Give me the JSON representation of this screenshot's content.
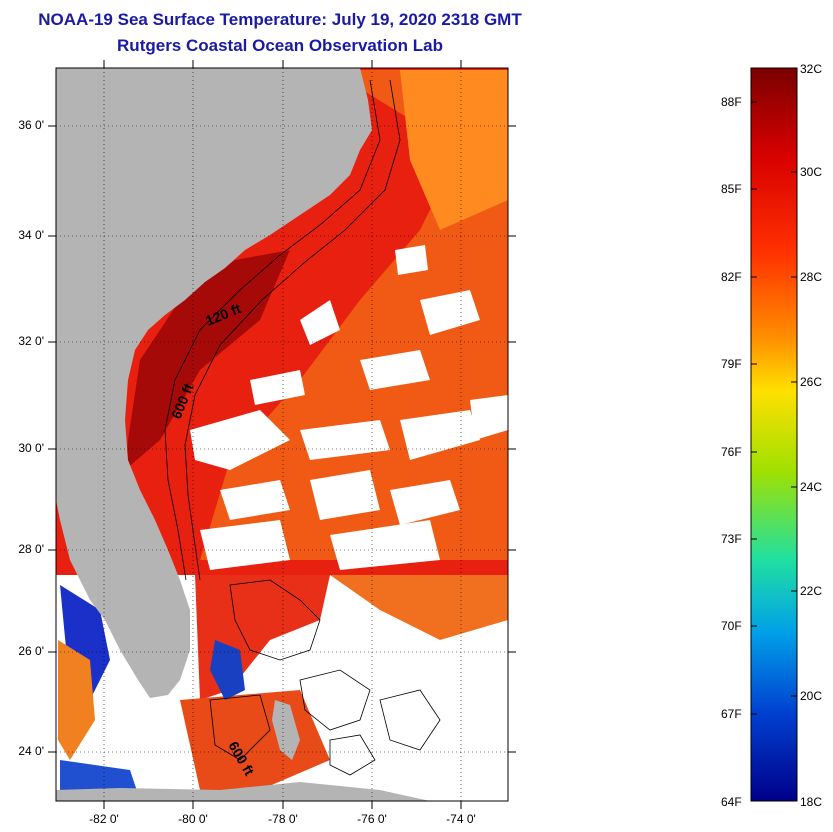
{
  "title": {
    "line1": "NOAA-19 Sea Surface Temperature:  July 19, 2020 2318 GMT",
    "line2": "Rutgers Coastal Ocean Observation Lab"
  },
  "map": {
    "lat_labels": [
      "36 0'",
      "34 0'",
      "32 0'",
      "30 0'",
      "28 0'",
      "26 0'",
      "24 0'"
    ],
    "lon_labels": [
      "-82 0'",
      "-80 0'",
      "-78 0'",
      "-76 0'",
      "-74 0'"
    ],
    "isobath_labels": [
      "120 ft",
      "600 ft",
      "600 ft"
    ],
    "colors": {
      "land": "#b4b4b4",
      "cloud": "#ffffff",
      "warm": "#e82010",
      "hot": "#a00808",
      "cool": "#1020c0"
    }
  },
  "colorbar": {
    "celsius_labels": [
      "32C",
      "30C",
      "28C",
      "26C",
      "24C",
      "22C",
      "20C",
      "18C"
    ],
    "fahrenheit_labels": [
      "88F",
      "85F",
      "82F",
      "79F",
      "76F",
      "73F",
      "70F",
      "67F",
      "64F"
    ],
    "gradient_colors": [
      "#7a0000",
      "#d80000",
      "#ff3000",
      "#ff9000",
      "#ffe000",
      "#a0e000",
      "#20e0a0",
      "#00a0e8",
      "#0040d0",
      "#00008a"
    ]
  }
}
